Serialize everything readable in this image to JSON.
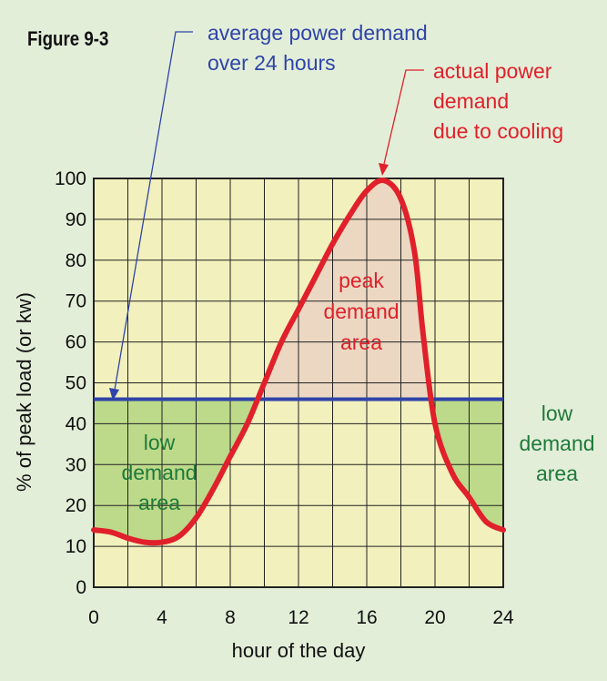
{
  "figure_label": "Figure 9-3",
  "colors": {
    "background": "#e3eed9",
    "plot_fill": "#f2f0bd",
    "low_demand_fill": "#bdd98a",
    "peak_demand_fill": "#ecd8c2",
    "curve": "#e0202a",
    "average_line": "#2e44a8",
    "average_label": "#2e44a8",
    "peak_label": "#e0202a",
    "low_label": "#1e7a3a",
    "grid": "#222222"
  },
  "annotations": {
    "average_lines": [
      "average power demand",
      "over 24 hours"
    ],
    "actual_lines": [
      "actual power",
      "demand",
      "due to cooling"
    ],
    "peak_area_lines": [
      "peak",
      "demand",
      "area"
    ],
    "low_area_left_lines": [
      "low",
      "demand",
      "area"
    ],
    "low_area_right_lines": [
      "low",
      "demand",
      "area"
    ]
  },
  "chart_data": {
    "type": "line",
    "title": "",
    "xlabel": "hour of the day",
    "ylabel": "% of peak load (or kw)",
    "xlim": [
      0,
      24
    ],
    "ylim": [
      0,
      100
    ],
    "x_ticks": [
      0,
      4,
      8,
      12,
      16,
      20,
      24
    ],
    "x_gridlines": [
      0,
      2,
      4,
      6,
      8,
      10,
      12,
      14,
      16,
      18,
      20,
      22,
      24
    ],
    "y_ticks": [
      0,
      10,
      20,
      30,
      40,
      50,
      60,
      70,
      80,
      90,
      100
    ],
    "grid": true,
    "average_demand": 46,
    "series": [
      {
        "x": [
          0,
          1,
          2,
          3,
          4,
          5,
          6,
          7,
          8,
          9,
          10,
          11,
          12,
          13,
          14,
          15,
          16,
          17,
          18,
          18.8,
          19.3,
          20,
          21,
          22,
          23,
          24
        ],
        "y": [
          14,
          13.5,
          12,
          11,
          11,
          12.5,
          17,
          24,
          32,
          40,
          50,
          60,
          68,
          76,
          84,
          91,
          97,
          99.5,
          95,
          82,
          62,
          40,
          28,
          22,
          16,
          14
        ]
      }
    ]
  }
}
